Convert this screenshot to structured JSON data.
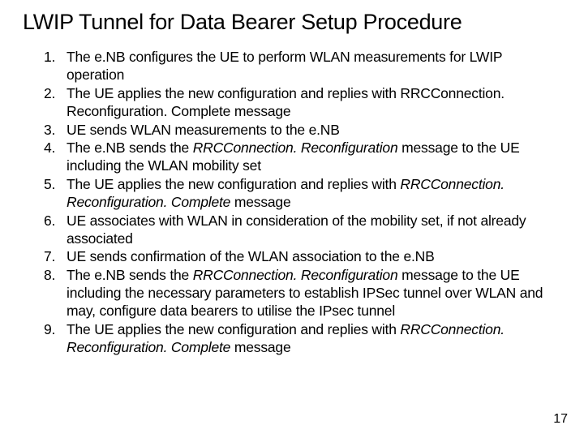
{
  "title": "LWIP Tunnel for Data Bearer Setup Procedure",
  "items": [
    {
      "n": "1.",
      "text": "The e.NB configures the UE to perform WLAN measurements for LWIP operation"
    },
    {
      "n": "2.",
      "text": "The UE applies the new configuration and replies with RRCConnection. Reconfiguration. Complete message"
    },
    {
      "n": "3.",
      "text": "UE sends WLAN measurements to the e.NB"
    },
    {
      "n": "4.",
      "text": "The e.NB sends the <i>RRCConnection. Reconfiguration</i> message to the UE including the WLAN mobility set"
    },
    {
      "n": "5.",
      "text": "The UE applies the new configuration and replies with <i>RRCConnection. Reconfiguration. Complete</i> message"
    },
    {
      "n": "6.",
      "text": "UE associates with WLAN in consideration of the mobility set, if not already associated"
    },
    {
      "n": "7.",
      "text": "UE sends confirmation of the WLAN association to the e.NB"
    },
    {
      "n": "8.",
      "text": "The e.NB sends the <i>RRCConnection. Reconfiguration</i> message to the UE including the necessary parameters to establish IPSec tunnel over WLAN and may, configure data bearers to utilise the IPsec tunnel"
    },
    {
      "n": "9.",
      "text": "The UE applies the new configuration and replies with <i>RRCConnection. Reconfiguration. Complete</i> message"
    }
  ],
  "page_number": "17",
  "colors": {
    "background": "#ffffff",
    "text": "#000000"
  },
  "fonts": {
    "title_size": 27,
    "body_size": 17.5,
    "pagenum_size": 16
  }
}
